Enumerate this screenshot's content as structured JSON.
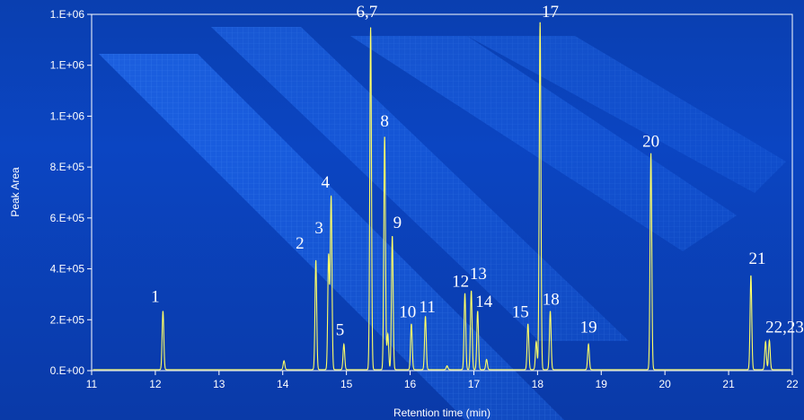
{
  "chart_data": {
    "type": "line",
    "xlabel": "Retention time (min)",
    "ylabel": "Peak Area",
    "xlim": [
      11,
      22
    ],
    "ylim": [
      0,
      1400000
    ],
    "x_ticks": [
      "11",
      "12",
      "13",
      "14",
      "15",
      "16",
      "17",
      "18",
      "19",
      "20",
      "21",
      "22"
    ],
    "y_ticks": [
      {
        "value": 0,
        "label": "0.E+00"
      },
      {
        "value": 200000,
        "label": "2.E+05"
      },
      {
        "value": 400000,
        "label": "4.E+05"
      },
      {
        "value": 600000,
        "label": "6.E+05"
      },
      {
        "value": 800000,
        "label": "8.E+05"
      },
      {
        "value": 1000000,
        "label": "1.E+06"
      },
      {
        "value": 1200000,
        "label": "1.E+06"
      },
      {
        "value": 1400000,
        "label": "1.E+06"
      }
    ],
    "grid": false,
    "line_color": "#ffff66",
    "series": [
      {
        "peaks": [
          {
            "x": 12.12,
            "y": 230000
          },
          {
            "x": 14.02,
            "y": 35000
          },
          {
            "x": 14.52,
            "y": 430000
          },
          {
            "x": 14.72,
            "y": 450000
          },
          {
            "x": 14.76,
            "y": 680000
          },
          {
            "x": 14.96,
            "y": 100000
          },
          {
            "x": 15.38,
            "y": 1345000
          },
          {
            "x": 15.6,
            "y": 915000
          },
          {
            "x": 15.65,
            "y": 140000
          },
          {
            "x": 15.72,
            "y": 525000
          },
          {
            "x": 16.02,
            "y": 180000
          },
          {
            "x": 16.24,
            "y": 210000
          },
          {
            "x": 16.58,
            "y": 15000
          },
          {
            "x": 16.86,
            "y": 300000
          },
          {
            "x": 16.96,
            "y": 310000
          },
          {
            "x": 17.06,
            "y": 230000
          },
          {
            "x": 17.2,
            "y": 40000
          },
          {
            "x": 17.85,
            "y": 180000
          },
          {
            "x": 17.98,
            "y": 110000
          },
          {
            "x": 18.04,
            "y": 1365000
          },
          {
            "x": 18.2,
            "y": 230000
          },
          {
            "x": 18.8,
            "y": 100000
          },
          {
            "x": 19.78,
            "y": 850000
          },
          {
            "x": 21.35,
            "y": 370000
          },
          {
            "x": 21.58,
            "y": 110000
          },
          {
            "x": 21.64,
            "y": 115000
          }
        ]
      }
    ],
    "annotations": [
      {
        "text": "1",
        "x": 12.0,
        "y": 270000
      },
      {
        "text": "2",
        "x": 14.27,
        "y": 480000
      },
      {
        "text": "3",
        "x": 14.57,
        "y": 540000
      },
      {
        "text": "4",
        "x": 14.67,
        "y": 720000
      },
      {
        "text": "5",
        "x": 14.9,
        "y": 140000
      },
      {
        "text": "6,7",
        "x": 15.32,
        "y": 1390000
      },
      {
        "text": "8",
        "x": 15.6,
        "y": 960000
      },
      {
        "text": "9",
        "x": 15.8,
        "y": 560000
      },
      {
        "text": "10",
        "x": 15.96,
        "y": 210000
      },
      {
        "text": "11",
        "x": 16.27,
        "y": 230000
      },
      {
        "text": "12",
        "x": 16.79,
        "y": 330000
      },
      {
        "text": "13",
        "x": 17.07,
        "y": 360000
      },
      {
        "text": "14",
        "x": 17.16,
        "y": 250000
      },
      {
        "text": "15",
        "x": 17.73,
        "y": 210000
      },
      {
        "text": "17",
        "x": 18.2,
        "y": 1390000
      },
      {
        "text": "18",
        "x": 18.21,
        "y": 260000
      },
      {
        "text": "19",
        "x": 18.8,
        "y": 150000
      },
      {
        "text": "20",
        "x": 19.78,
        "y": 880000
      },
      {
        "text": "21",
        "x": 21.45,
        "y": 420000
      },
      {
        "text": "22,23",
        "x": 21.88,
        "y": 150000
      }
    ]
  }
}
